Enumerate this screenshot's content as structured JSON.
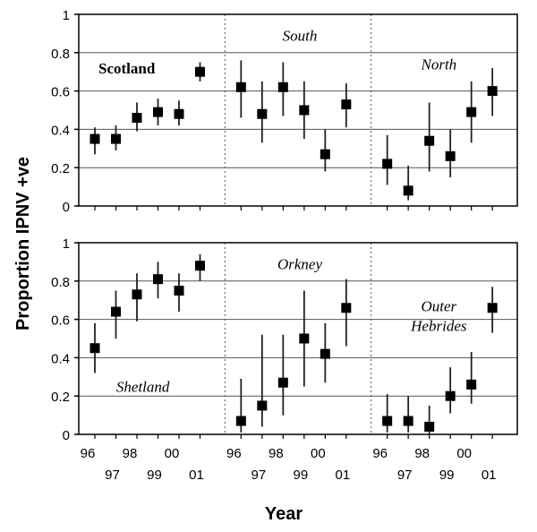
{
  "chart_data": {
    "type": "scatter",
    "y_axis_label": "Proportion IPNV +ve",
    "x_axis_label": "Year",
    "y_range": [
      0,
      1
    ],
    "y_ticks": [
      "0",
      "0.2",
      "0.4",
      "0.6",
      "0.8",
      "1"
    ],
    "year_ticks_top_row": [
      "96",
      "98",
      "00"
    ],
    "year_ticks_bottom_row": [
      "97",
      "99",
      "01"
    ],
    "gridlines": "horizontal",
    "colors": {
      "marker": "#000000",
      "errorbar": "#222222",
      "gridline": "#555555",
      "divider": "#555555"
    },
    "panels": [
      {
        "groups": [
          {
            "label": "Scotland",
            "label_style": "bold",
            "label_position": "upper-left",
            "x": [
              "96",
              "97",
              "98",
              "99",
              "00",
              "01"
            ],
            "y": [
              0.35,
              0.35,
              0.46,
              0.49,
              0.48,
              0.7
            ],
            "y_low": [
              0.27,
              0.29,
              0.39,
              0.42,
              0.42,
              0.65
            ],
            "y_high": [
              0.41,
              0.42,
              0.54,
              0.56,
              0.55,
              0.75
            ]
          },
          {
            "label": "South",
            "label_style": "italic",
            "label_position": "top-center",
            "x": [
              "96",
              "97",
              "98",
              "99",
              "00",
              "01"
            ],
            "y": [
              0.62,
              0.48,
              0.62,
              0.5,
              0.27,
              0.53
            ],
            "y_low": [
              0.46,
              0.33,
              0.47,
              0.35,
              0.18,
              0.41
            ],
            "y_high": [
              0.76,
              0.65,
              0.75,
              0.65,
              0.4,
              0.64
            ]
          },
          {
            "label": "North",
            "label_style": "italic",
            "label_position": "upper-center",
            "x": [
              "96",
              "97",
              "98",
              "99",
              "00",
              "01"
            ],
            "y": [
              0.22,
              0.08,
              0.34,
              0.26,
              0.49,
              0.6
            ],
            "y_low": [
              0.11,
              0.03,
              0.18,
              0.15,
              0.33,
              0.47
            ],
            "y_high": [
              0.37,
              0.21,
              0.54,
              0.4,
              0.65,
              0.72
            ]
          }
        ]
      },
      {
        "groups": [
          {
            "label": "Shetland",
            "label_style": "italic",
            "label_position": "lower-center",
            "x": [
              "96",
              "97",
              "98",
              "99",
              "00",
              "01"
            ],
            "y": [
              0.45,
              0.64,
              0.73,
              0.81,
              0.75,
              0.88
            ],
            "y_low": [
              0.32,
              0.5,
              0.59,
              0.71,
              0.64,
              0.8
            ],
            "y_high": [
              0.58,
              0.75,
              0.84,
              0.9,
              0.84,
              0.94
            ]
          },
          {
            "label": "Orkney",
            "label_style": "italic",
            "label_position": "top-center",
            "x": [
              "96",
              "97",
              "98",
              "99",
              "00",
              "01"
            ],
            "y": [
              0.07,
              0.15,
              0.27,
              0.5,
              0.42,
              0.66
            ],
            "y_low": [
              0.01,
              0.04,
              0.1,
              0.25,
              0.27,
              0.46
            ],
            "y_high": [
              0.29,
              0.52,
              0.52,
              0.75,
              0.58,
              0.81
            ]
          },
          {
            "label": "Outer Hebrides",
            "label_lines": [
              "Outer",
              "Hebrides"
            ],
            "label_style": "italic",
            "label_position": "middle-center",
            "x": [
              "96",
              "97",
              "98",
              "99",
              "00",
              "01"
            ],
            "y": [
              0.07,
              0.07,
              0.04,
              0.2,
              0.26,
              0.66
            ],
            "y_low": [
              0.01,
              0.01,
              0.0,
              0.11,
              0.16,
              0.53
            ],
            "y_high": [
              0.21,
              0.2,
              0.15,
              0.35,
              0.43,
              0.77
            ]
          }
        ]
      }
    ]
  }
}
